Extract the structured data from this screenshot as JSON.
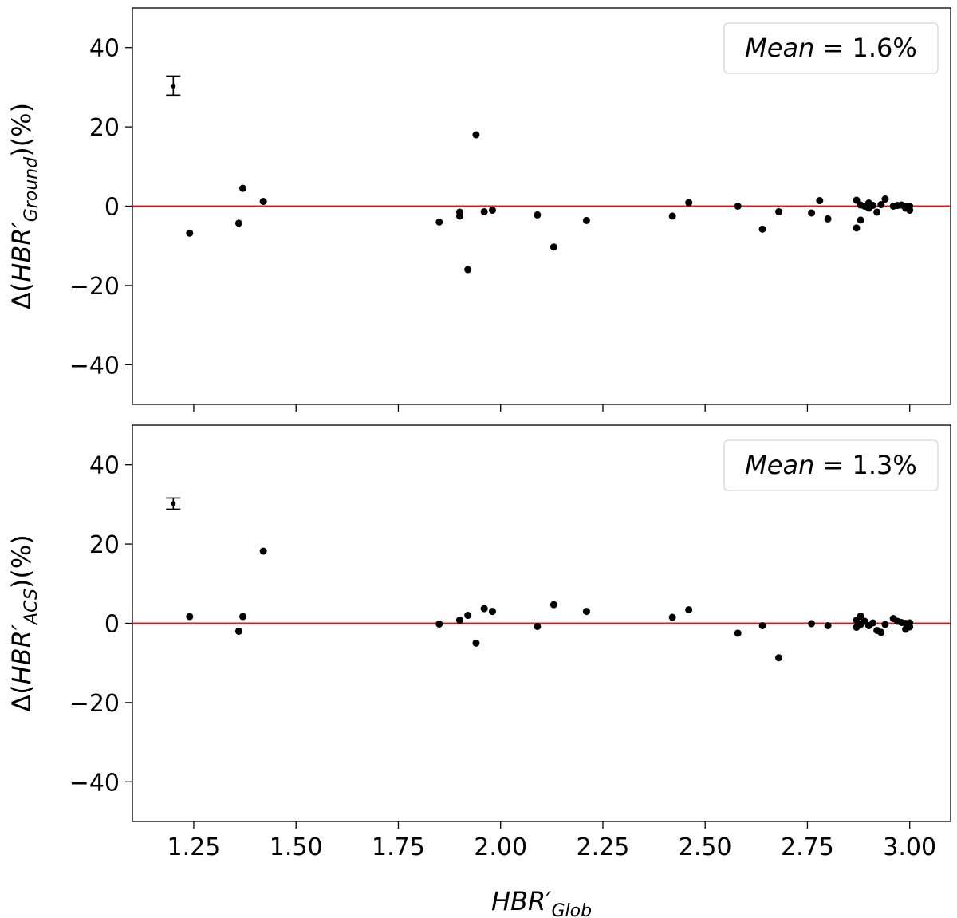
{
  "chart_data": [
    {
      "type": "scatter",
      "panel": "top",
      "ylabel": {
        "prefix": "Δ(",
        "base": "HBR′",
        "sub": "Ground",
        "suffix": ")(%)"
      },
      "annotation": {
        "label": "Mean",
        "eq": " = ",
        "value": "1.6%"
      },
      "xlim": [
        1.1,
        3.1
      ],
      "ylim": [
        -50,
        50
      ],
      "yticks": [
        40,
        20,
        0,
        -20,
        -40
      ],
      "ytick_labels": [
        "40",
        "20",
        "0",
        "−20",
        "−40"
      ],
      "reference_line": {
        "y": 0,
        "color": "#e8141c"
      },
      "error_bar": {
        "x": 1.2,
        "y": 30.3,
        "ylow": 28.0,
        "yhigh": 32.8
      },
      "points": [
        [
          1.24,
          -6.8
        ],
        [
          1.36,
          -4.3
        ],
        [
          1.37,
          4.5
        ],
        [
          1.42,
          1.2
        ],
        [
          1.85,
          -4.0
        ],
        [
          1.9,
          -1.5
        ],
        [
          1.9,
          -2.5
        ],
        [
          1.92,
          -16.0
        ],
        [
          1.94,
          18.0
        ],
        [
          1.96,
          -1.4
        ],
        [
          1.98,
          -1.0
        ],
        [
          2.09,
          -2.2
        ],
        [
          2.13,
          -10.3
        ],
        [
          2.21,
          -3.6
        ],
        [
          2.42,
          -2.5
        ],
        [
          2.46,
          0.9
        ],
        [
          2.58,
          0.0
        ],
        [
          2.64,
          -5.8
        ],
        [
          2.68,
          -1.4
        ],
        [
          2.76,
          -1.7
        ],
        [
          2.78,
          1.4
        ],
        [
          2.8,
          -3.2
        ],
        [
          2.87,
          1.5
        ],
        [
          2.87,
          -5.5
        ],
        [
          2.88,
          -3.5
        ],
        [
          2.88,
          0.3
        ],
        [
          2.89,
          0.0
        ],
        [
          2.9,
          0.8
        ],
        [
          2.9,
          -0.5
        ],
        [
          2.91,
          0.2
        ],
        [
          2.92,
          -1.5
        ],
        [
          2.93,
          0.4
        ],
        [
          2.94,
          1.8
        ],
        [
          2.96,
          0.0
        ],
        [
          2.97,
          0.2
        ],
        [
          2.98,
          0.3
        ],
        [
          2.99,
          0.0
        ],
        [
          2.99,
          -0.5
        ],
        [
          3.0,
          0.0
        ],
        [
          3.0,
          -1.0
        ]
      ]
    },
    {
      "type": "scatter",
      "panel": "bottom",
      "xlabel": {
        "base": "HBR′",
        "sub": "Glob"
      },
      "ylabel": {
        "prefix": "Δ(",
        "base": "HBR′",
        "sub": "ACS",
        "suffix": ")(%)"
      },
      "annotation": {
        "label": "Mean",
        "eq": " = ",
        "value": "1.3%"
      },
      "xlim": [
        1.1,
        3.1
      ],
      "ylim": [
        -50,
        50
      ],
      "xticks": [
        1.25,
        1.5,
        1.75,
        2.0,
        2.25,
        2.5,
        2.75,
        3.0
      ],
      "xtick_labels": [
        "1.25",
        "1.50",
        "1.75",
        "2.00",
        "2.25",
        "2.50",
        "2.75",
        "3.00"
      ],
      "yticks": [
        40,
        20,
        0,
        -20,
        -40
      ],
      "ytick_labels": [
        "40",
        "20",
        "0",
        "−20",
        "−40"
      ],
      "reference_line": {
        "y": 0,
        "color": "#e8141c"
      },
      "error_bar": {
        "x": 1.2,
        "y": 30.2,
        "ylow": 28.8,
        "yhigh": 31.6
      },
      "points": [
        [
          1.24,
          1.7
        ],
        [
          1.36,
          -2.0
        ],
        [
          1.37,
          1.7
        ],
        [
          1.42,
          18.2
        ],
        [
          1.85,
          -0.2
        ],
        [
          1.9,
          0.8
        ],
        [
          1.92,
          2.0
        ],
        [
          1.94,
          -5.0
        ],
        [
          1.96,
          3.7
        ],
        [
          1.98,
          3.0
        ],
        [
          2.09,
          -0.8
        ],
        [
          2.13,
          4.7
        ],
        [
          2.21,
          3.0
        ],
        [
          2.42,
          1.5
        ],
        [
          2.46,
          3.4
        ],
        [
          2.58,
          -2.5
        ],
        [
          2.64,
          -0.6
        ],
        [
          2.68,
          -8.7
        ],
        [
          2.76,
          -0.1
        ],
        [
          2.8,
          -0.6
        ],
        [
          2.87,
          -1.0
        ],
        [
          2.87,
          0.8
        ],
        [
          2.88,
          1.8
        ],
        [
          2.88,
          -0.3
        ],
        [
          2.89,
          0.5
        ],
        [
          2.9,
          -0.6
        ],
        [
          2.91,
          0.1
        ],
        [
          2.92,
          -1.8
        ],
        [
          2.93,
          -2.3
        ],
        [
          2.94,
          -0.3
        ],
        [
          2.96,
          1.2
        ],
        [
          2.97,
          0.5
        ],
        [
          2.98,
          0.2
        ],
        [
          2.99,
          -1.5
        ],
        [
          2.99,
          0.0
        ],
        [
          3.0,
          -0.9
        ],
        [
          3.0,
          0.1
        ]
      ]
    }
  ]
}
